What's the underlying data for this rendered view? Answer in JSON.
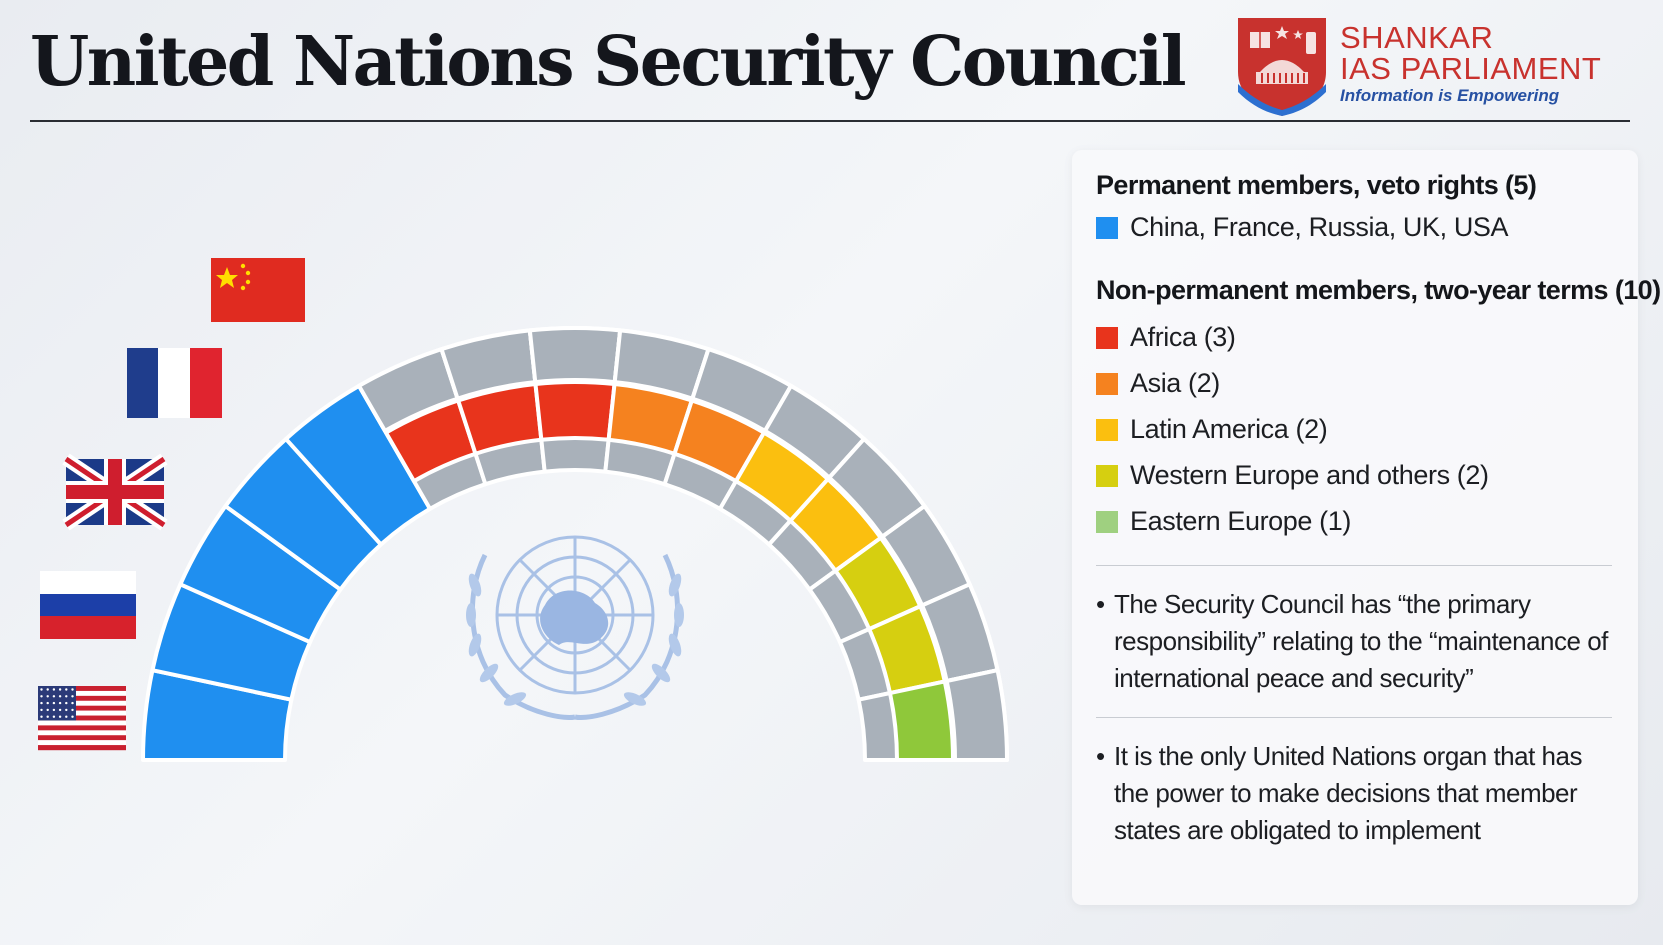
{
  "title": "United Nations Security Council",
  "logo": {
    "line1": "SHANKAR",
    "line2": "IAS PARLIAMENT",
    "tagline": "Information is Empowering"
  },
  "legend": {
    "permanent_header": "Permanent members, veto rights (5)",
    "permanent_members": "China, France, Russia, UK, USA",
    "nonpermanent_header": "Non-permanent members, two-year terms (10)",
    "regions": [
      {
        "label": "Africa (3)",
        "color": "#e8341c"
      },
      {
        "label": "Asia (2)",
        "color": "#f5821f"
      },
      {
        "label": "Latin America (2)",
        "color": "#fbbf0f"
      },
      {
        "label": "Western Europe and others (2)",
        "color": "#d6cf10"
      },
      {
        "label": "Eastern Europe (1)",
        "color": "#9fd080"
      }
    ]
  },
  "notes": [
    "The Security Council has “the primary responsibility” relating to the “maintenance of international peace and security”",
    "It is the only United Nations organ that has the power to make decisions that member states are obligated to implement"
  ],
  "chart_data": {
    "type": "parliament",
    "seats_total": 15,
    "permanent": {
      "count": 5,
      "color": "#1f8ff0",
      "members": [
        "China",
        "France",
        "UK",
        "Russia",
        "USA"
      ]
    },
    "non_permanent": {
      "count": 10,
      "regions": [
        {
          "name": "Africa",
          "seats": 3,
          "color": "#e8341c"
        },
        {
          "name": "Asia",
          "seats": 2,
          "color": "#f5821f"
        },
        {
          "name": "Latin America",
          "seats": 2,
          "color": "#fbbf0f"
        },
        {
          "name": "Western Europe and others",
          "seats": 2,
          "color": "#d6cf10"
        },
        {
          "name": "Eastern Europe",
          "seats": 1,
          "color": "#8fc83a"
        }
      ]
    },
    "empty_seat_color": "#a9b1ba"
  },
  "colors": {
    "permanent": "#1f8ff0",
    "empty": "#a9b1ba",
    "title": "#14161c",
    "logo_red": "#c8322e",
    "logo_blue": "#2751a3"
  }
}
